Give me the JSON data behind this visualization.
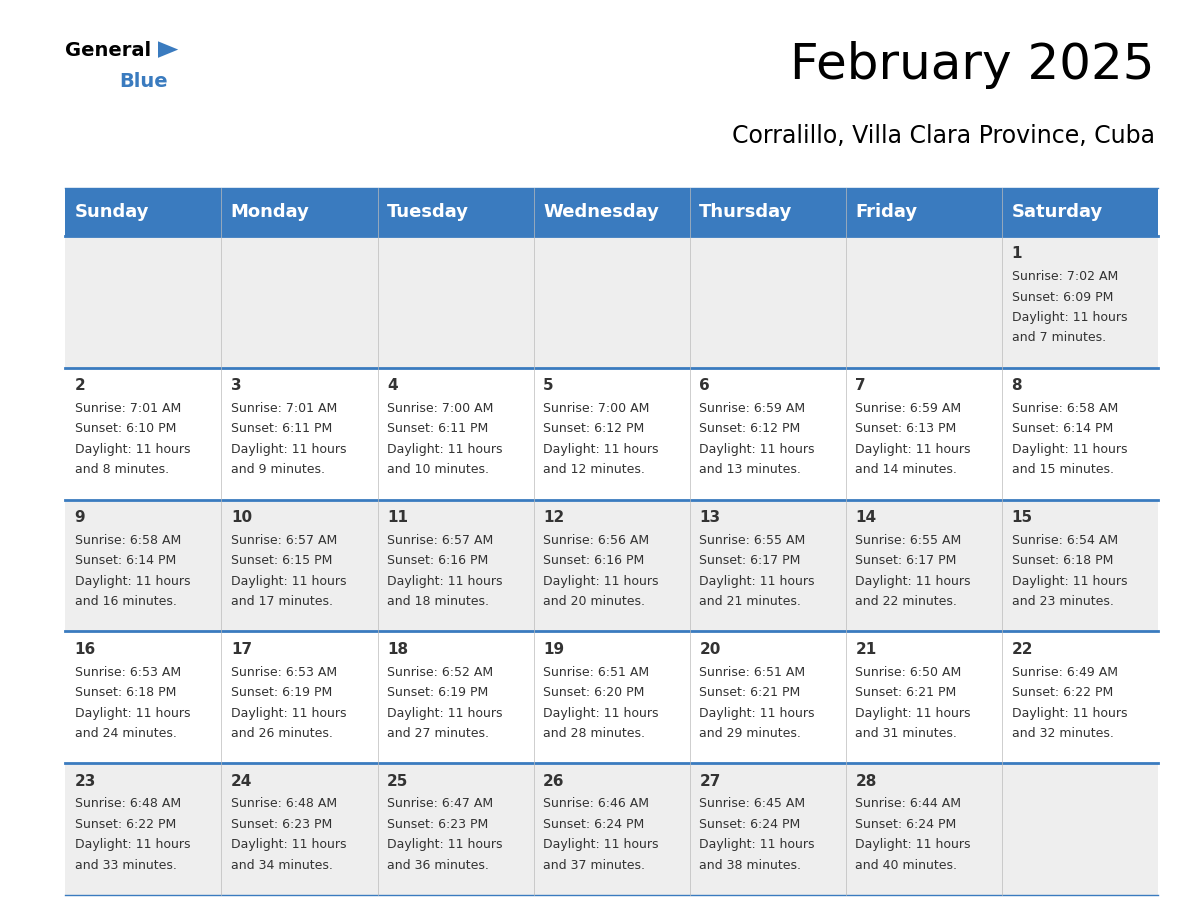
{
  "title": "February 2025",
  "subtitle": "Corralillo, Villa Clara Province, Cuba",
  "header_color": "#3a7bbf",
  "header_text_color": "#ffffff",
  "row_bg_odd": "#eeeeee",
  "row_bg_even": "#ffffff",
  "border_color": "#3a7bbf",
  "text_color": "#333333",
  "day_names": [
    "Sunday",
    "Monday",
    "Tuesday",
    "Wednesday",
    "Thursday",
    "Friday",
    "Saturday"
  ],
  "title_fontsize": 36,
  "subtitle_fontsize": 17,
  "header_fontsize": 13,
  "day_num_fontsize": 11,
  "info_fontsize": 9,
  "days": [
    {
      "day": 1,
      "col": 6,
      "row": 0,
      "sunrise": "7:02 AM",
      "sunset": "6:09 PM",
      "daylight": "11 hours and 7 minutes"
    },
    {
      "day": 2,
      "col": 0,
      "row": 1,
      "sunrise": "7:01 AM",
      "sunset": "6:10 PM",
      "daylight": "11 hours and 8 minutes"
    },
    {
      "day": 3,
      "col": 1,
      "row": 1,
      "sunrise": "7:01 AM",
      "sunset": "6:11 PM",
      "daylight": "11 hours and 9 minutes"
    },
    {
      "day": 4,
      "col": 2,
      "row": 1,
      "sunrise": "7:00 AM",
      "sunset": "6:11 PM",
      "daylight": "11 hours and 10 minutes"
    },
    {
      "day": 5,
      "col": 3,
      "row": 1,
      "sunrise": "7:00 AM",
      "sunset": "6:12 PM",
      "daylight": "11 hours and 12 minutes"
    },
    {
      "day": 6,
      "col": 4,
      "row": 1,
      "sunrise": "6:59 AM",
      "sunset": "6:12 PM",
      "daylight": "11 hours and 13 minutes"
    },
    {
      "day": 7,
      "col": 5,
      "row": 1,
      "sunrise": "6:59 AM",
      "sunset": "6:13 PM",
      "daylight": "11 hours and 14 minutes"
    },
    {
      "day": 8,
      "col": 6,
      "row": 1,
      "sunrise": "6:58 AM",
      "sunset": "6:14 PM",
      "daylight": "11 hours and 15 minutes"
    },
    {
      "day": 9,
      "col": 0,
      "row": 2,
      "sunrise": "6:58 AM",
      "sunset": "6:14 PM",
      "daylight": "11 hours and 16 minutes"
    },
    {
      "day": 10,
      "col": 1,
      "row": 2,
      "sunrise": "6:57 AM",
      "sunset": "6:15 PM",
      "daylight": "11 hours and 17 minutes"
    },
    {
      "day": 11,
      "col": 2,
      "row": 2,
      "sunrise": "6:57 AM",
      "sunset": "6:16 PM",
      "daylight": "11 hours and 18 minutes"
    },
    {
      "day": 12,
      "col": 3,
      "row": 2,
      "sunrise": "6:56 AM",
      "sunset": "6:16 PM",
      "daylight": "11 hours and 20 minutes"
    },
    {
      "day": 13,
      "col": 4,
      "row": 2,
      "sunrise": "6:55 AM",
      "sunset": "6:17 PM",
      "daylight": "11 hours and 21 minutes"
    },
    {
      "day": 14,
      "col": 5,
      "row": 2,
      "sunrise": "6:55 AM",
      "sunset": "6:17 PM",
      "daylight": "11 hours and 22 minutes"
    },
    {
      "day": 15,
      "col": 6,
      "row": 2,
      "sunrise": "6:54 AM",
      "sunset": "6:18 PM",
      "daylight": "11 hours and 23 minutes"
    },
    {
      "day": 16,
      "col": 0,
      "row": 3,
      "sunrise": "6:53 AM",
      "sunset": "6:18 PM",
      "daylight": "11 hours and 24 minutes"
    },
    {
      "day": 17,
      "col": 1,
      "row": 3,
      "sunrise": "6:53 AM",
      "sunset": "6:19 PM",
      "daylight": "11 hours and 26 minutes"
    },
    {
      "day": 18,
      "col": 2,
      "row": 3,
      "sunrise": "6:52 AM",
      "sunset": "6:19 PM",
      "daylight": "11 hours and 27 minutes"
    },
    {
      "day": 19,
      "col": 3,
      "row": 3,
      "sunrise": "6:51 AM",
      "sunset": "6:20 PM",
      "daylight": "11 hours and 28 minutes"
    },
    {
      "day": 20,
      "col": 4,
      "row": 3,
      "sunrise": "6:51 AM",
      "sunset": "6:21 PM",
      "daylight": "11 hours and 29 minutes"
    },
    {
      "day": 21,
      "col": 5,
      "row": 3,
      "sunrise": "6:50 AM",
      "sunset": "6:21 PM",
      "daylight": "11 hours and 31 minutes"
    },
    {
      "day": 22,
      "col": 6,
      "row": 3,
      "sunrise": "6:49 AM",
      "sunset": "6:22 PM",
      "daylight": "11 hours and 32 minutes"
    },
    {
      "day": 23,
      "col": 0,
      "row": 4,
      "sunrise": "6:48 AM",
      "sunset": "6:22 PM",
      "daylight": "11 hours and 33 minutes"
    },
    {
      "day": 24,
      "col": 1,
      "row": 4,
      "sunrise": "6:48 AM",
      "sunset": "6:23 PM",
      "daylight": "11 hours and 34 minutes"
    },
    {
      "day": 25,
      "col": 2,
      "row": 4,
      "sunrise": "6:47 AM",
      "sunset": "6:23 PM",
      "daylight": "11 hours and 36 minutes"
    },
    {
      "day": 26,
      "col": 3,
      "row": 4,
      "sunrise": "6:46 AM",
      "sunset": "6:24 PM",
      "daylight": "11 hours and 37 minutes"
    },
    {
      "day": 27,
      "col": 4,
      "row": 4,
      "sunrise": "6:45 AM",
      "sunset": "6:24 PM",
      "daylight": "11 hours and 38 minutes"
    },
    {
      "day": 28,
      "col": 5,
      "row": 4,
      "sunrise": "6:44 AM",
      "sunset": "6:24 PM",
      "daylight": "11 hours and 40 minutes"
    }
  ]
}
